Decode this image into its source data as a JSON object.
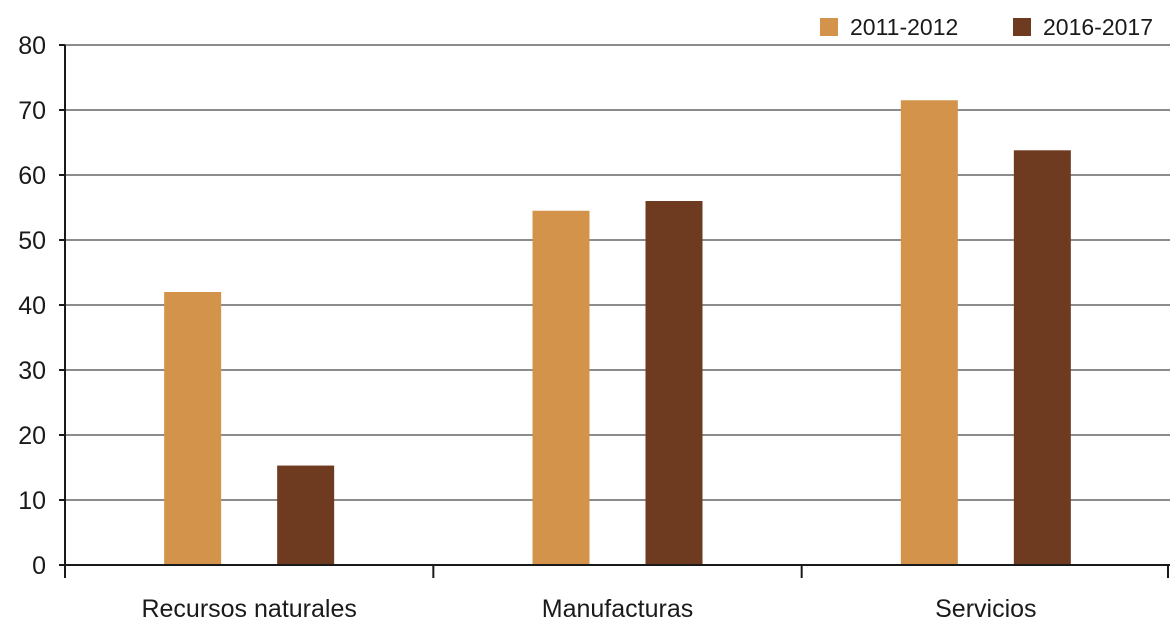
{
  "chart_data": {
    "type": "bar",
    "categories": [
      "Recursos naturales",
      "Manufacturas",
      "Servicios"
    ],
    "series": [
      {
        "name": "2011-2012",
        "color": "#d4934b",
        "values": [
          42,
          54.5,
          71.5
        ]
      },
      {
        "name": "2016-2017",
        "color": "#6e3a20",
        "values": [
          15.3,
          56,
          63.8
        ]
      }
    ],
    "ylim": [
      0,
      80
    ],
    "yticks": [
      0,
      10,
      20,
      30,
      40,
      50,
      60,
      70,
      80
    ],
    "grid": true,
    "legend_position": "top-right",
    "title": "",
    "xlabel": "",
    "ylabel": ""
  }
}
